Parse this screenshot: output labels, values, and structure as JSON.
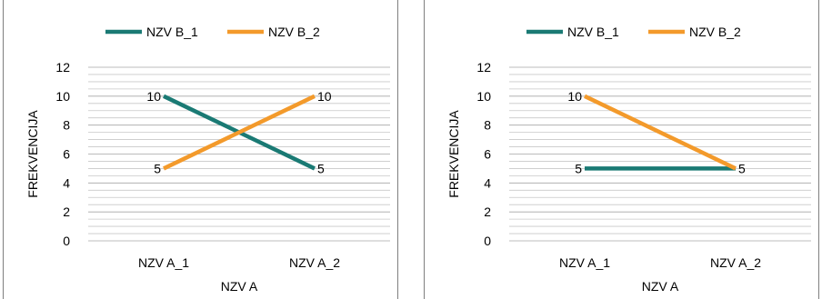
{
  "chart_data": [
    {
      "type": "line",
      "xlabel": "NZV A",
      "ylabel": "FREKVENCIJA",
      "categories": [
        "NZV A_1",
        "NZV A_2"
      ],
      "ylim": [
        0,
        12
      ],
      "yticks": [
        0,
        2,
        4,
        6,
        8,
        10,
        12
      ],
      "grid": true,
      "legend_position": "top",
      "series": [
        {
          "name": "NZV B_1",
          "color": "#1a7a74",
          "values": [
            10,
            5
          ],
          "labels": [
            "10",
            "5"
          ]
        },
        {
          "name": "NZV B_2",
          "color": "#f39a2b",
          "values": [
            5,
            10
          ],
          "labels": [
            "5",
            "10"
          ]
        }
      ]
    },
    {
      "type": "line",
      "xlabel": "NZV A",
      "ylabel": "FREKVENCIJA",
      "categories": [
        "NZV A_1",
        "NZV A_2"
      ],
      "ylim": [
        0,
        12
      ],
      "yticks": [
        0,
        2,
        4,
        6,
        8,
        10,
        12
      ],
      "grid": true,
      "legend_position": "top",
      "series": [
        {
          "name": "NZV B_1",
          "color": "#1a7a74",
          "values": [
            5,
            5
          ],
          "labels": [
            "5",
            ""
          ]
        },
        {
          "name": "NZV B_2",
          "color": "#f39a2b",
          "values": [
            10,
            5
          ],
          "labels": [
            "10",
            "5"
          ]
        }
      ]
    }
  ]
}
